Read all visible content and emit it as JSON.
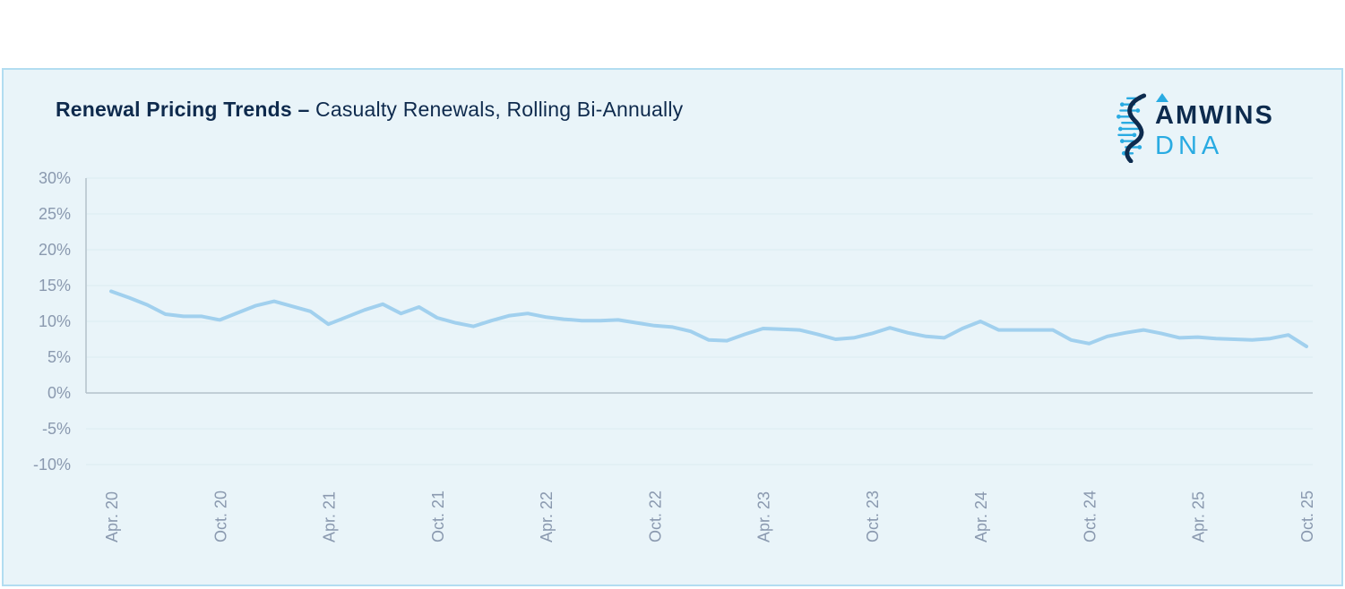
{
  "header": {
    "title_bold": "Renewal Pricing Trends –",
    "title_regular": " Casualty Renewals, Rolling Bi-Annually"
  },
  "logo": {
    "brand": "AMWINS",
    "product": "DNA",
    "navy": "#0d2b4e",
    "blue": "#29abe2"
  },
  "colors": {
    "card_background": "#e9f4f9",
    "card_border": "#b2ddf1",
    "title_text": "#0e2a4d",
    "tick_label": "#8a99af",
    "gridline": "#dcebf1",
    "axis_line": "#b4c1cb",
    "series_line": "#a1d0ee"
  },
  "chart_data": {
    "type": "line",
    "title": "Renewal Pricing Trends – Casualty Renewals, Rolling Bi-Annually",
    "xlabel": "",
    "ylabel": "",
    "ylim": [
      -10,
      30
    ],
    "y_tick_step": 5,
    "grid": true,
    "legend": "none",
    "frequency": "monthly",
    "x_start": "Apr 2020",
    "x_end": "Oct 2025",
    "y_tick_labels": [
      "30%",
      "25%",
      "20%",
      "15%",
      "10%",
      "5%",
      "0%",
      "-5%",
      "-10%"
    ],
    "x_tick_labels": [
      "Apr. 20",
      "Oct. 20",
      "Apr. 21",
      "Oct. 21",
      "Apr. 22",
      "Oct. 22",
      "Apr. 23",
      "Oct. 23",
      "Apr. 24",
      "Oct. 24",
      "Apr. 25",
      "Oct. 25"
    ],
    "x_tick_every_n_points": 6,
    "x": [
      "2020-04",
      "2020-05",
      "2020-06",
      "2020-07",
      "2020-08",
      "2020-09",
      "2020-10",
      "2020-11",
      "2020-12",
      "2021-01",
      "2021-02",
      "2021-03",
      "2021-04",
      "2021-05",
      "2021-06",
      "2021-07",
      "2021-08",
      "2021-09",
      "2021-10",
      "2021-11",
      "2021-12",
      "2022-01",
      "2022-02",
      "2022-03",
      "2022-04",
      "2022-05",
      "2022-06",
      "2022-07",
      "2022-08",
      "2022-09",
      "2022-10",
      "2022-11",
      "2022-12",
      "2023-01",
      "2023-02",
      "2023-03",
      "2023-04",
      "2023-05",
      "2023-06",
      "2023-07",
      "2023-08",
      "2023-09",
      "2023-10",
      "2023-11",
      "2023-12",
      "2024-01",
      "2024-02",
      "2024-03",
      "2024-04",
      "2024-05",
      "2024-06",
      "2024-07",
      "2024-08",
      "2024-09",
      "2024-10",
      "2024-11",
      "2024-12",
      "2025-01",
      "2025-02",
      "2025-03",
      "2025-04",
      "2025-05",
      "2025-06",
      "2025-07",
      "2025-08",
      "2025-09",
      "2025-10"
    ],
    "series": [
      {
        "name": "Casualty renewal pricing (rolling bi-annual, %)",
        "values": [
          14.2,
          13.3,
          12.3,
          11.0,
          10.7,
          10.7,
          10.2,
          11.2,
          12.2,
          12.8,
          12.1,
          11.4,
          9.6,
          10.6,
          11.6,
          12.4,
          11.1,
          12.0,
          10.5,
          9.8,
          9.3,
          10.1,
          10.8,
          11.1,
          10.6,
          10.3,
          10.1,
          10.1,
          10.2,
          9.8,
          9.4,
          9.2,
          8.6,
          7.4,
          7.3,
          8.2,
          9.0,
          8.9,
          8.8,
          8.2,
          7.5,
          7.7,
          8.3,
          9.1,
          8.4,
          7.9,
          7.7,
          9.0,
          10.0,
          8.8,
          8.8,
          8.8,
          8.8,
          7.4,
          6.9,
          7.9,
          8.4,
          8.8,
          8.3,
          7.7,
          7.8,
          7.6,
          7.5,
          7.4,
          7.6,
          8.1,
          6.5
        ]
      }
    ]
  }
}
